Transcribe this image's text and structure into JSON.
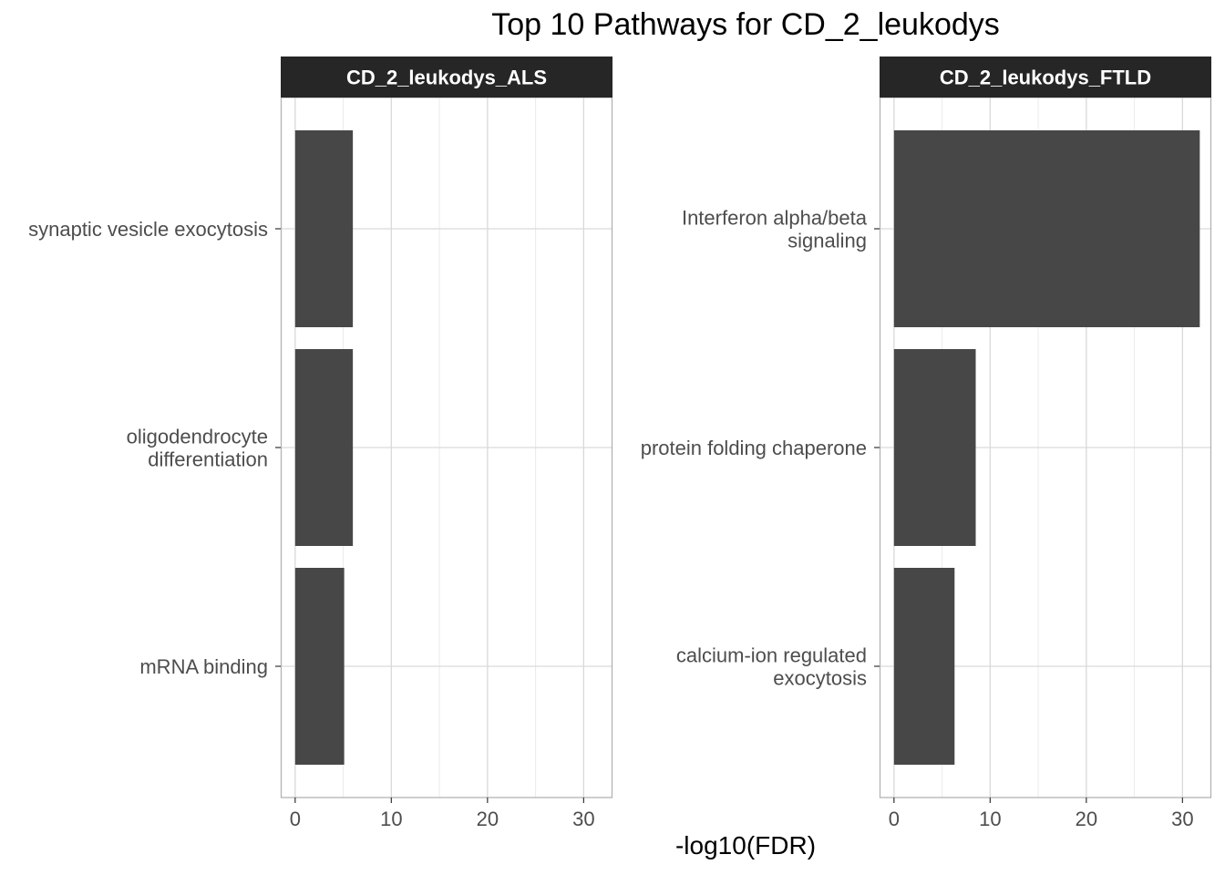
{
  "chart_data": {
    "type": "bar",
    "orientation": "horizontal",
    "title": "Top 10 Pathways for CD_2_leukodys",
    "xlabel": "-log10(FDR)",
    "grid": true,
    "xlim": [
      -1.5,
      33
    ],
    "xticks": [
      "0",
      "10",
      "20",
      "30"
    ],
    "colors": {
      "bar": "#474747",
      "strip_background": "#262626",
      "strip_text": "#ffffff",
      "grid": "#d9d9d9",
      "panel_border": "#b3b3b3",
      "axis_text": "#4d4d4d"
    },
    "panels": [
      {
        "strip": "CD_2_leukodys_ALS",
        "categories": [
          [
            "synaptic vesicle exocytosis"
          ],
          [
            "oligodendrocyte",
            "differentiation"
          ],
          [
            "mRNA binding"
          ]
        ],
        "values": [
          6.0,
          6.0,
          5.1
        ]
      },
      {
        "strip": "CD_2_leukodys_FTLD",
        "categories": [
          [
            "Interferon alpha/beta",
            "signaling"
          ],
          [
            "protein folding chaperone"
          ],
          [
            "calcium-ion regulated",
            "exocytosis"
          ]
        ],
        "values": [
          31.8,
          8.5,
          6.3
        ]
      }
    ]
  }
}
